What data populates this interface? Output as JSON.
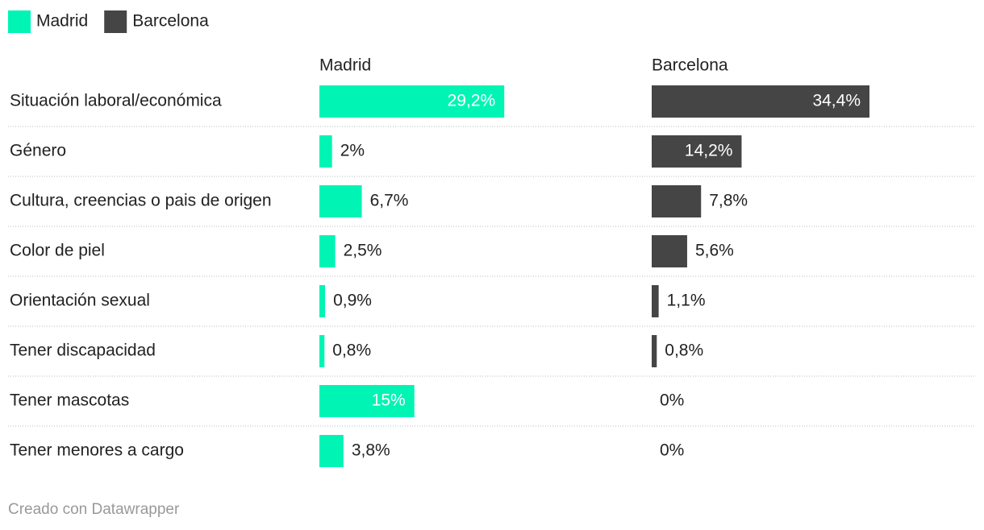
{
  "chart_data": {
    "type": "split-bar",
    "categories": [
      "Situación laboral/económica",
      "Género",
      "Cultura, creencias o pais de origen",
      "Color de piel",
      "Orientación sexual",
      "Tener discapacidad",
      "Tener mascotas",
      "Tener menores a cargo"
    ],
    "series": [
      {
        "name": "Madrid",
        "color": "#00f5b5",
        "values": [
          29.2,
          2,
          6.7,
          2.5,
          0.9,
          0.8,
          15,
          3.8
        ],
        "value_labels": [
          "29,2%",
          "2%",
          "6,7%",
          "2,5%",
          "0,9%",
          "0,8%",
          "15%",
          "3,8%"
        ]
      },
      {
        "name": "Barcelona",
        "color": "#454545",
        "values": [
          34.4,
          14.2,
          7.8,
          5.6,
          1.1,
          0.8,
          0,
          0
        ],
        "value_labels": [
          "34,4%",
          "14,2%",
          "7,8%",
          "5,6%",
          "1,1%",
          "0,8%",
          "0%",
          "0%"
        ]
      }
    ]
  },
  "footer": "Creado con Datawrapper"
}
